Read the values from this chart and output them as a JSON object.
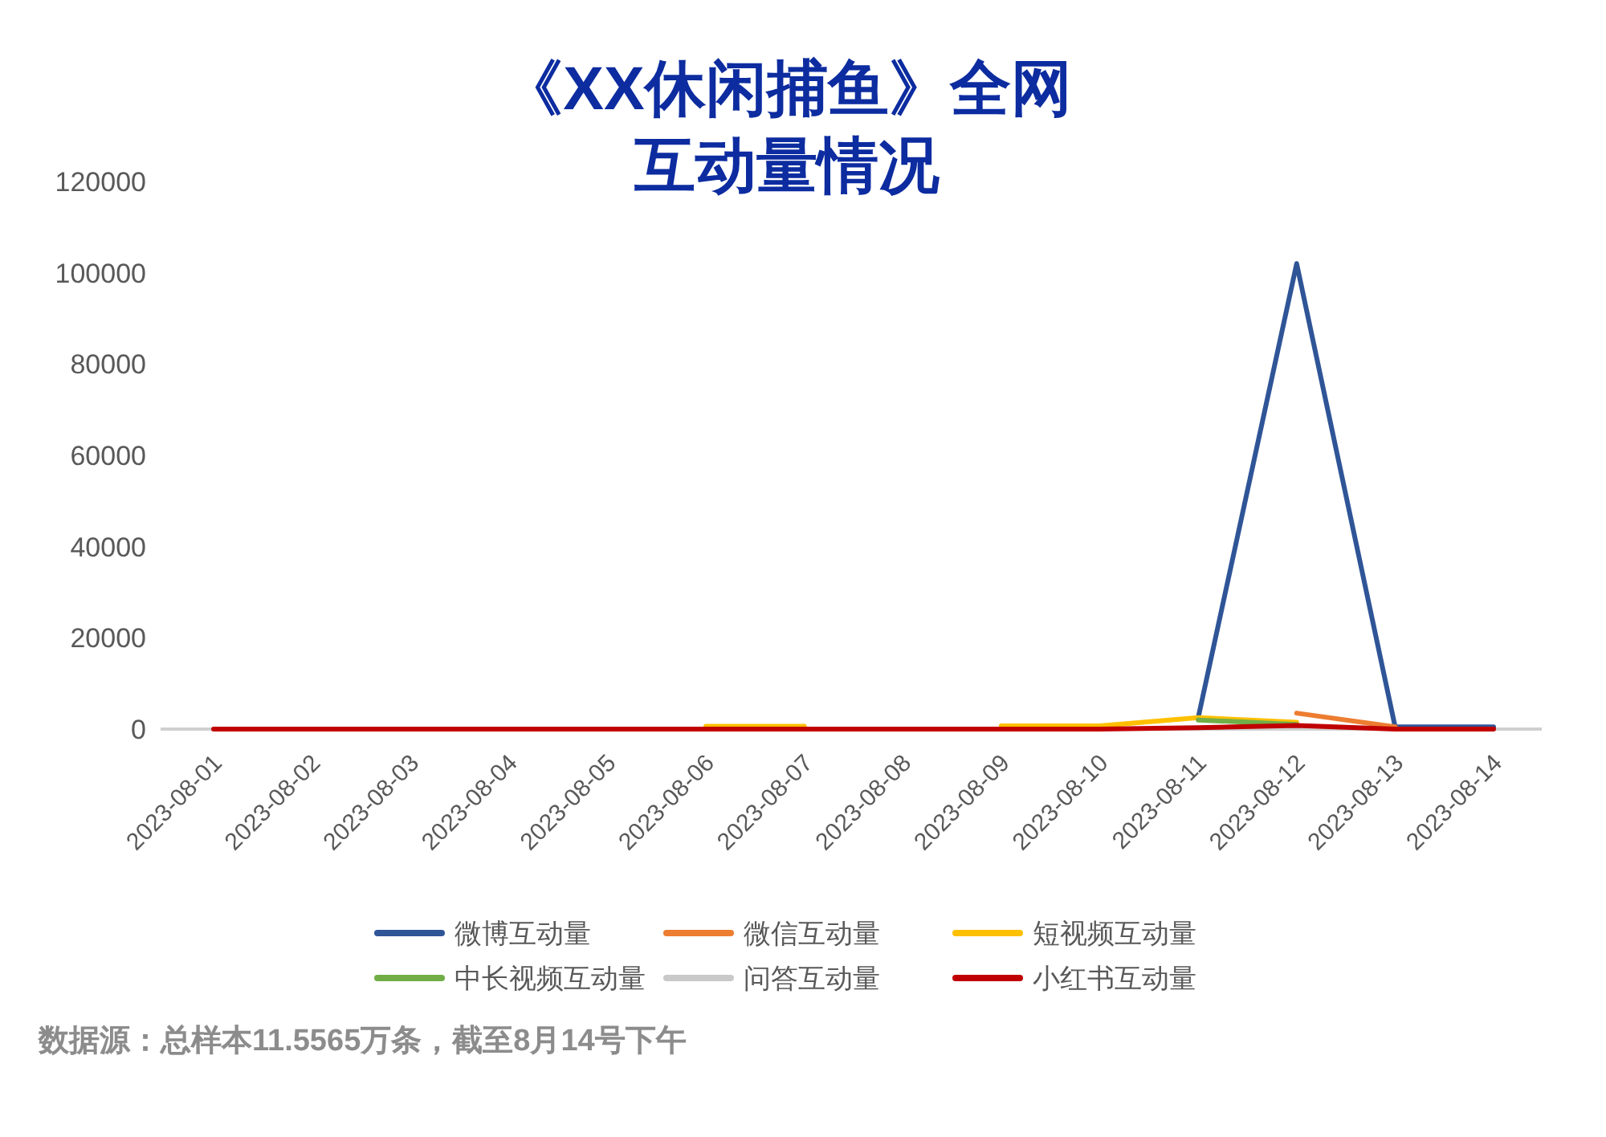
{
  "chart_data": {
    "type": "line",
    "title": "《XX休闲捕鱼》全网互动量情况",
    "categories": [
      "2023-08-01",
      "2023-08-02",
      "2023-08-03",
      "2023-08-04",
      "2023-08-05",
      "2023-08-06",
      "2023-08-07",
      "2023-08-08",
      "2023-08-09",
      "2023-08-10",
      "2023-08-11",
      "2023-08-12",
      "2023-08-13",
      "2023-08-14"
    ],
    "series": [
      {
        "name": "微博互动量",
        "color": "#2f5597",
        "values": [
          null,
          null,
          null,
          null,
          null,
          null,
          null,
          null,
          null,
          null,
          2500,
          102000,
          500,
          500
        ]
      },
      {
        "name": "微信互动量",
        "color": "#ed7d31",
        "values": [
          null,
          null,
          null,
          null,
          null,
          null,
          null,
          null,
          null,
          null,
          null,
          3500,
          500,
          null
        ]
      },
      {
        "name": "短视频互动量",
        "color": "#ffc000",
        "values": [
          null,
          null,
          null,
          null,
          null,
          600,
          600,
          null,
          700,
          700,
          2500,
          1500,
          null,
          null
        ]
      },
      {
        "name": "中长视频互动量",
        "color": "#70ad47",
        "values": [
          null,
          null,
          null,
          null,
          null,
          null,
          null,
          null,
          null,
          null,
          2000,
          1000,
          null,
          null
        ]
      },
      {
        "name": "问答互动量",
        "color": "#c9c9c9",
        "values": [
          null,
          null,
          null,
          null,
          null,
          null,
          null,
          null,
          null,
          null,
          null,
          null,
          null,
          null
        ]
      },
      {
        "name": "小红书互动量",
        "color": "#c00000",
        "values": [
          0,
          0,
          0,
          0,
          0,
          0,
          0,
          0,
          0,
          0,
          300,
          800,
          0,
          0
        ]
      }
    ],
    "ylim": [
      0,
      120000
    ],
    "yticks": [
      0,
      20000,
      40000,
      60000,
      80000,
      100000,
      120000
    ],
    "grid": false,
    "legend": "bottom",
    "marker": "none",
    "line_style": "solid",
    "annotations": [
      "数据源：总样本11.5565万条，截至8月14号下午"
    ]
  }
}
